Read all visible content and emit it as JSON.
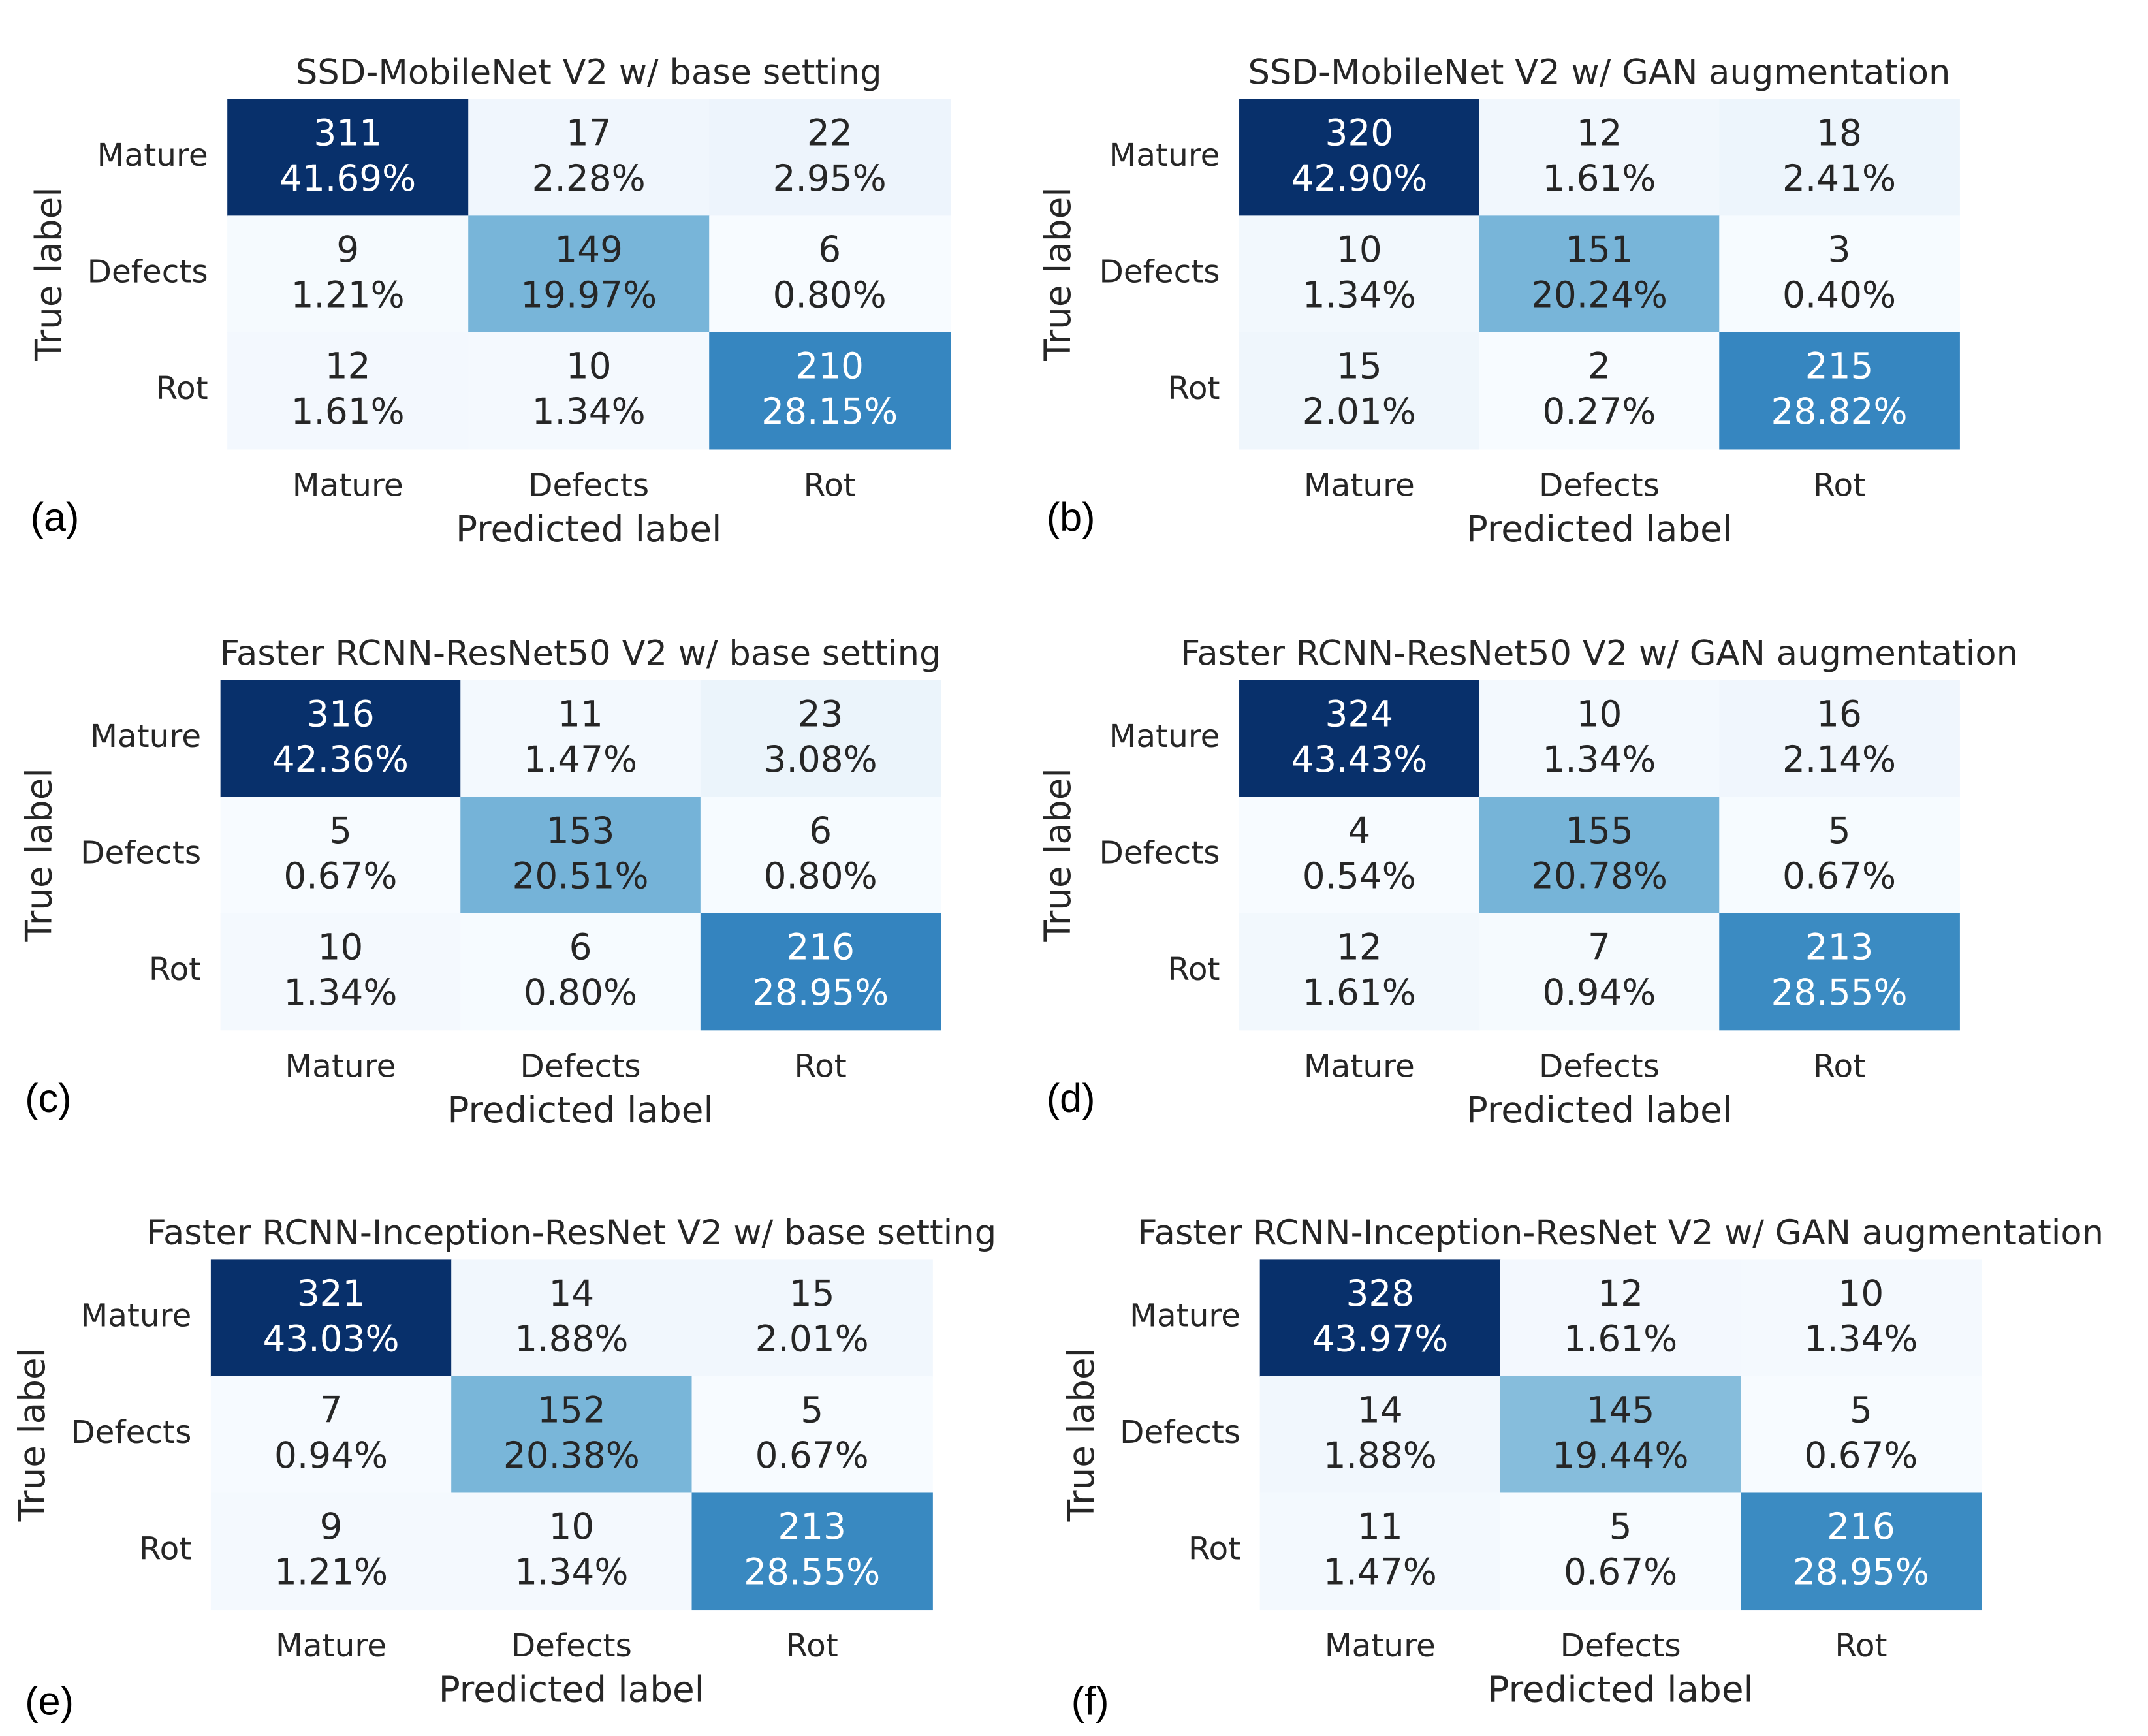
{
  "chart_data": [
    {
      "type": "heatmap",
      "title": "SSD-MobileNet V2 w/ base setting",
      "panel_label": "(a)",
      "x_label": "Predicted label",
      "y_label": "True label",
      "categories": [
        "Mature",
        "Defects",
        "Rot"
      ],
      "y_categories": [
        "Mature",
        "Defects",
        "Rot"
      ],
      "values": [
        [
          311,
          17,
          22
        ],
        [
          9,
          149,
          6
        ],
        [
          12,
          10,
          210
        ]
      ],
      "percent_labels": [
        [
          "41.69%",
          "2.28%",
          "2.95%"
        ],
        [
          "1.21%",
          "19.97%",
          "0.80%"
        ],
        [
          "1.61%",
          "1.34%",
          "28.15%"
        ]
      ],
      "colormap": [
        "#f7fbff",
        "#deebf7",
        "#c6dbef",
        "#9ecae1",
        "#6baed6",
        "#4292c6",
        "#2171b5",
        "#08519c",
        "#08306b"
      ]
    },
    {
      "type": "heatmap",
      "title": "SSD-MobileNet V2 w/ GAN augmentation",
      "panel_label": "(b)",
      "x_label": "Predicted label",
      "y_label": "True label",
      "categories": [
        "Mature",
        "Defects",
        "Rot"
      ],
      "y_categories": [
        "Mature",
        "Defects",
        "Rot"
      ],
      "values": [
        [
          320,
          12,
          18
        ],
        [
          10,
          151,
          3
        ],
        [
          15,
          2,
          215
        ]
      ],
      "percent_labels": [
        [
          "42.90%",
          "1.61%",
          "2.41%"
        ],
        [
          "1.34%",
          "20.24%",
          "0.40%"
        ],
        [
          "2.01%",
          "0.27%",
          "28.82%"
        ]
      ],
      "colormap": [
        "#f7fbff",
        "#deebf7",
        "#c6dbef",
        "#9ecae1",
        "#6baed6",
        "#4292c6",
        "#2171b5",
        "#08519c",
        "#08306b"
      ]
    },
    {
      "type": "heatmap",
      "title": "Faster RCNN-ResNet50 V2 w/ base setting",
      "panel_label": "(c)",
      "x_label": "Predicted label",
      "y_label": "True label",
      "categories": [
        "Mature",
        "Defects",
        "Rot"
      ],
      "y_categories": [
        "Mature",
        "Defects",
        "Rot"
      ],
      "values": [
        [
          316,
          11,
          23
        ],
        [
          5,
          153,
          6
        ],
        [
          10,
          6,
          216
        ]
      ],
      "percent_labels": [
        [
          "42.36%",
          "1.47%",
          "3.08%"
        ],
        [
          "0.67%",
          "20.51%",
          "0.80%"
        ],
        [
          "1.34%",
          "0.80%",
          "28.95%"
        ]
      ],
      "colormap": [
        "#f7fbff",
        "#deebf7",
        "#c6dbef",
        "#9ecae1",
        "#6baed6",
        "#4292c6",
        "#2171b5",
        "#08519c",
        "#08306b"
      ]
    },
    {
      "type": "heatmap",
      "title": "Faster RCNN-ResNet50 V2 w/ GAN augmentation",
      "panel_label": "(d)",
      "x_label": "Predicted label",
      "y_label": "True label",
      "categories": [
        "Mature",
        "Defects",
        "Rot"
      ],
      "y_categories": [
        "Mature",
        "Defects",
        "Rot"
      ],
      "values": [
        [
          324,
          10,
          16
        ],
        [
          4,
          155,
          5
        ],
        [
          12,
          7,
          213
        ]
      ],
      "percent_labels": [
        [
          "43.43%",
          "1.34%",
          "2.14%"
        ],
        [
          "0.54%",
          "20.78%",
          "0.67%"
        ],
        [
          "1.61%",
          "0.94%",
          "28.55%"
        ]
      ],
      "colormap": [
        "#f7fbff",
        "#deebf7",
        "#c6dbef",
        "#9ecae1",
        "#6baed6",
        "#4292c6",
        "#2171b5",
        "#08519c",
        "#08306b"
      ]
    },
    {
      "type": "heatmap",
      "title": "Faster RCNN-Inception-ResNet V2 w/ base setting",
      "panel_label": "(e)",
      "x_label": "Predicted label",
      "y_label": "True label",
      "categories": [
        "Mature",
        "Defects",
        "Rot"
      ],
      "y_categories": [
        "Mature",
        "Defects",
        "Rot"
      ],
      "values": [
        [
          321,
          14,
          15
        ],
        [
          7,
          152,
          5
        ],
        [
          9,
          10,
          213
        ]
      ],
      "percent_labels": [
        [
          "43.03%",
          "1.88%",
          "2.01%"
        ],
        [
          "0.94%",
          "20.38%",
          "0.67%"
        ],
        [
          "1.21%",
          "1.34%",
          "28.55%"
        ]
      ],
      "colormap": [
        "#f7fbff",
        "#deebf7",
        "#c6dbef",
        "#9ecae1",
        "#6baed6",
        "#4292c6",
        "#2171b5",
        "#08519c",
        "#08306b"
      ]
    },
    {
      "type": "heatmap",
      "title": "Faster RCNN-Inception-ResNet V2 w/ GAN augmentation",
      "panel_label": "(f)",
      "x_label": "Predicted label",
      "y_label": "True label",
      "categories": [
        "Mature",
        "Defects",
        "Rot"
      ],
      "y_categories": [
        "Mature",
        "Defects",
        "Rot"
      ],
      "values": [
        [
          328,
          12,
          10
        ],
        [
          14,
          145,
          5
        ],
        [
          11,
          5,
          216
        ]
      ],
      "percent_labels": [
        [
          "43.97%",
          "1.61%",
          "1.34%"
        ],
        [
          "1.88%",
          "19.44%",
          "0.67%"
        ],
        [
          "1.47%",
          "0.67%",
          "28.95%"
        ]
      ],
      "colormap": [
        "#f7fbff",
        "#deebf7",
        "#c6dbef",
        "#9ecae1",
        "#6baed6",
        "#4292c6",
        "#2171b5",
        "#08519c",
        "#08306b"
      ]
    }
  ]
}
